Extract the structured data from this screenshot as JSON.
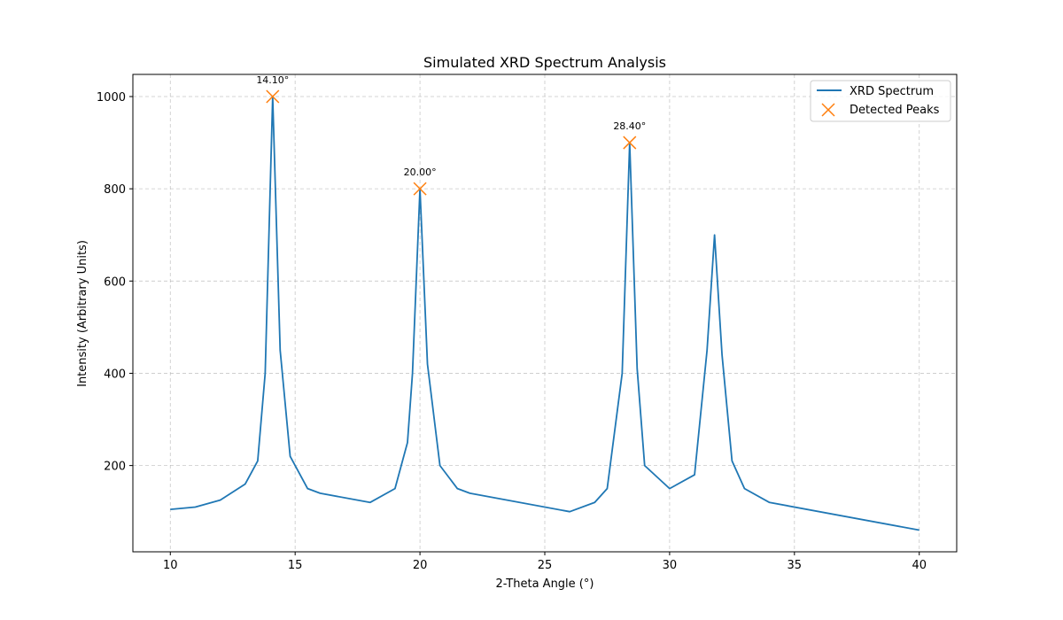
{
  "chart_data": {
    "type": "line",
    "title": "Simulated XRD Spectrum Analysis",
    "xlabel": "2-Theta Angle (°)",
    "ylabel": "Intensity (Arbitrary Units)",
    "xlim": [
      8.5,
      41.5
    ],
    "ylim": [
      13,
      1048
    ],
    "xticks": [
      10,
      15,
      20,
      25,
      30,
      35,
      40
    ],
    "yticks": [
      200,
      400,
      600,
      800,
      1000
    ],
    "grid": true,
    "legend_position": "top-right",
    "series": [
      {
        "name": "XRD Spectrum",
        "kind": "line",
        "color": "#1f77b4",
        "x": [
          10,
          11,
          12,
          13,
          13.5,
          13.8,
          14.1,
          14.4,
          14.8,
          15.5,
          16,
          18,
          19,
          19.5,
          19.7,
          20,
          20.3,
          20.8,
          21.5,
          22,
          26,
          27,
          27.5,
          28.1,
          28.4,
          28.7,
          29,
          30,
          31,
          31.5,
          31.8,
          32.1,
          32.5,
          33,
          34,
          40
        ],
        "y": [
          105,
          110,
          125,
          160,
          210,
          400,
          1000,
          450,
          220,
          150,
          140,
          120,
          150,
          250,
          400,
          800,
          420,
          200,
          150,
          140,
          100,
          120,
          150,
          400,
          900,
          410,
          200,
          150,
          180,
          450,
          700,
          440,
          210,
          150,
          120,
          60
        ]
      },
      {
        "name": "Detected Peaks",
        "kind": "scatter",
        "marker": "x",
        "color": "#ff7f0e",
        "x": [
          14.1,
          20.0,
          28.4
        ],
        "y": [
          1000,
          800,
          900
        ]
      }
    ],
    "annotations": [
      {
        "text": "14.10°",
        "x": 14.1,
        "y": 1000
      },
      {
        "text": "20.00°",
        "x": 20.0,
        "y": 800
      },
      {
        "text": "28.40°",
        "x": 28.4,
        "y": 900
      }
    ]
  }
}
